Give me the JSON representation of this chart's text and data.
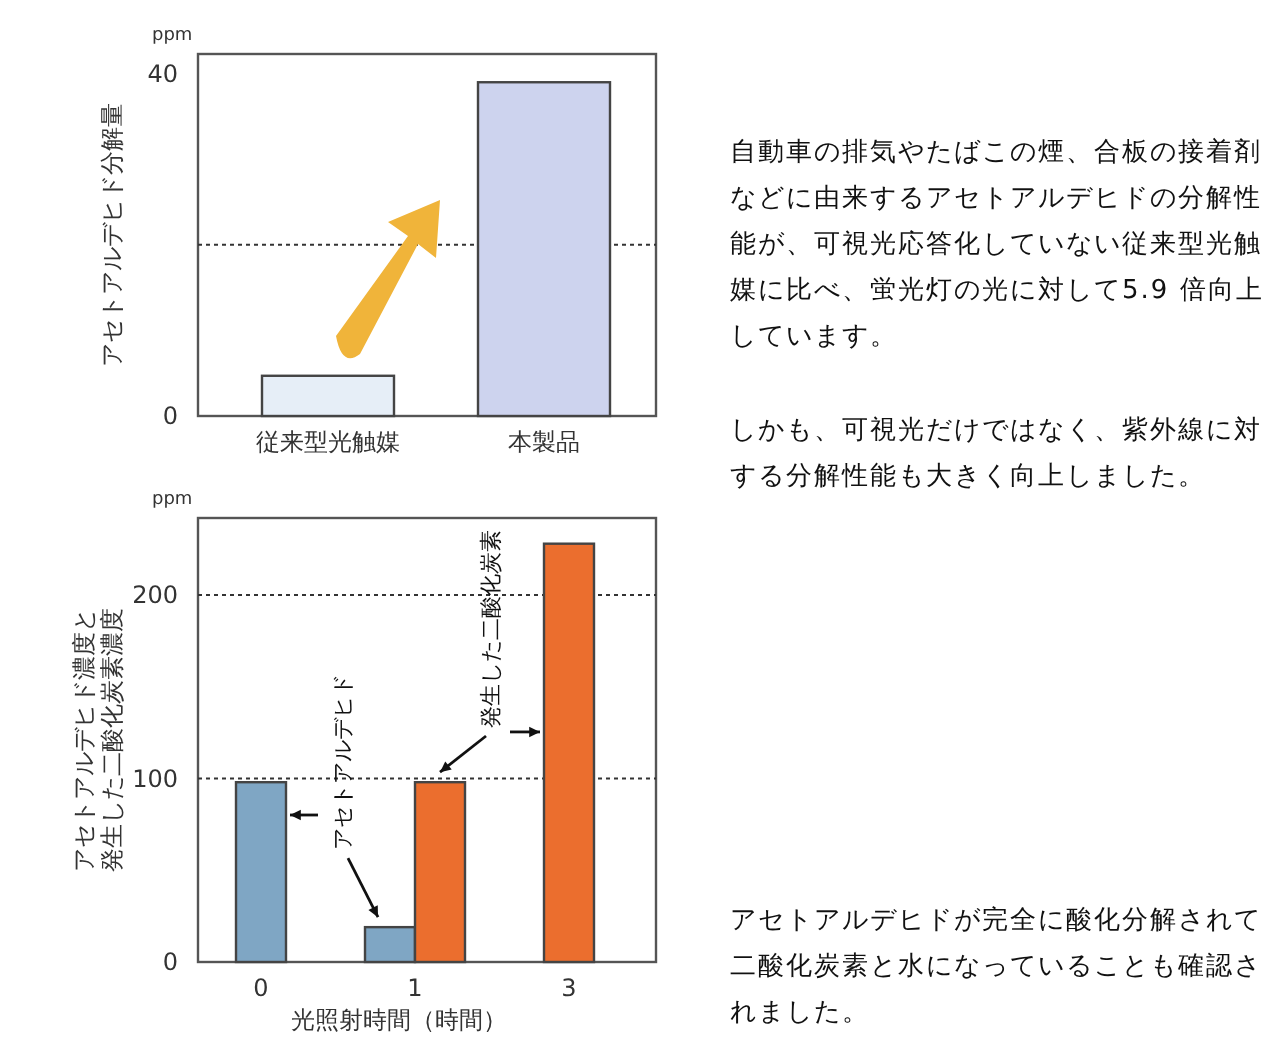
{
  "chart_data": [
    {
      "type": "bar",
      "ylabel": "アセトアルデヒド分解量",
      "categories": [
        "従来型光触媒",
        "本製品"
      ],
      "values": [
        4.7,
        39
      ],
      "colors": [
        "#e6eef7",
        "#cdd3ee"
      ],
      "ylim": [
        0,
        42.3
      ],
      "yticks": [
        0,
        40
      ],
      "ref_lines": [
        {
          "axis": "y",
          "value": 20,
          "line_style": "dotted"
        }
      ],
      "annotations": [
        "ppm",
        "自動車の排気やたばこの煙、合板の接着剤などに由来するアセトアルデヒドの分解性能が、可視光応答化していない従来型光触媒に比べ、蛍光灯の光に対して5.9 倍向上しています。",
        "しかも、可視光だけではなく、紫外線に対する分解性能も大きく向上しました。"
      ]
    },
    {
      "type": "bar",
      "xlabel": "光照射時間（時間）",
      "ylabel": "アセトアルデヒド濃度と発生した二酸化炭素濃度",
      "categories": [
        "0",
        "1",
        "3"
      ],
      "series": [
        {
          "name": "アセトアルデヒド",
          "color": "#7fa6c4",
          "values": [
            98,
            19,
            null
          ]
        },
        {
          "name": "発生した二酸化炭素",
          "color": "#eb6e2e",
          "values": [
            null,
            98,
            228
          ]
        }
      ],
      "ylim": [
        0,
        242
      ],
      "yticks": [
        0,
        100,
        200
      ],
      "ref_lines": [
        {
          "axis": "y",
          "value": 100,
          "line_style": "dotted"
        },
        {
          "axis": "y",
          "value": 200,
          "line_style": "dotted"
        }
      ],
      "annotations": [
        "ppm",
        "アセトアルデヒドが完全に酸化分解されて二酸化炭素と水になっていることも確認されました。"
      ]
    }
  ]
}
